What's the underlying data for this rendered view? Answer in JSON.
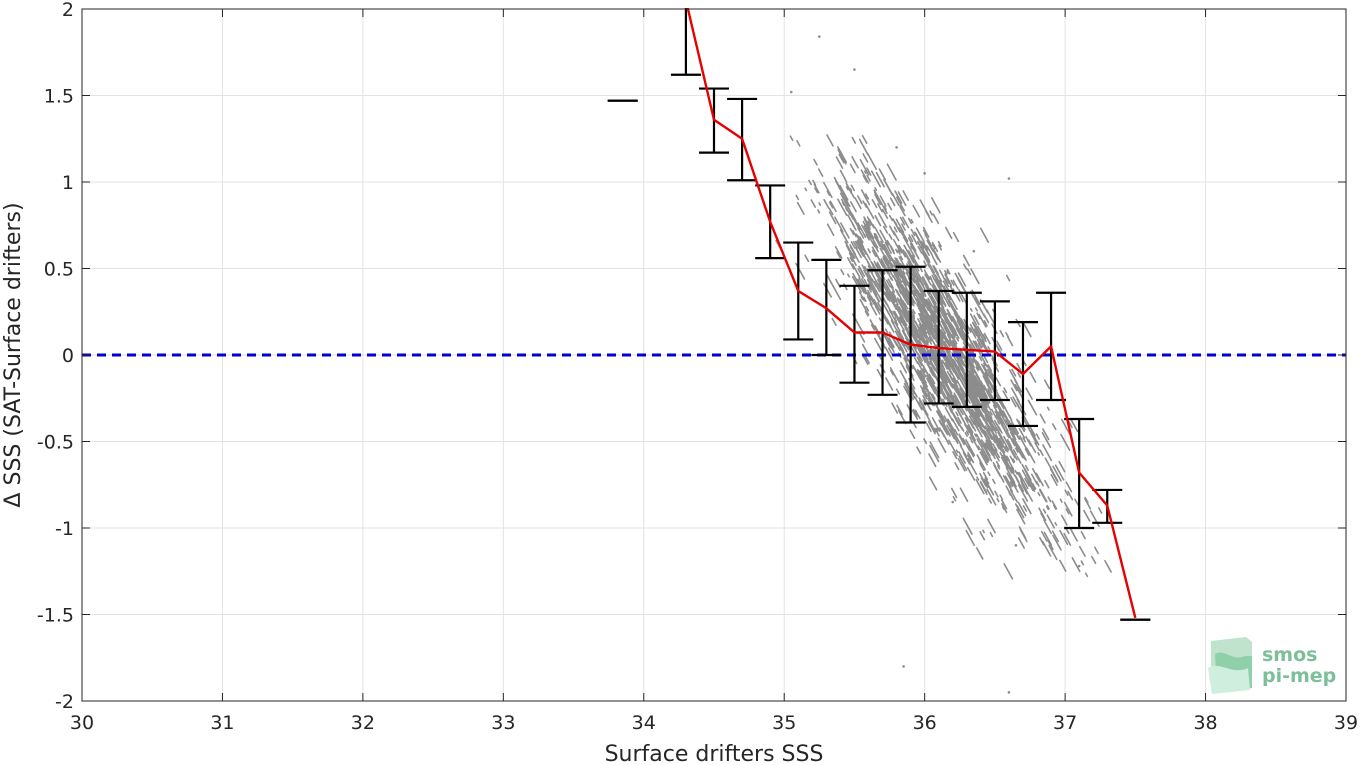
{
  "chart_data": {
    "type": "scatter",
    "xlabel": "Surface drifters SSS",
    "ylabel": "Δ SSS (SAT-Surface drifters)",
    "xlim": [
      30,
      39
    ],
    "ylim": [
      -2,
      2
    ],
    "x_ticks": [
      30,
      31,
      32,
      33,
      34,
      35,
      36,
      37,
      38,
      39
    ],
    "y_ticks": [
      -2,
      -1.5,
      -1,
      -0.5,
      0,
      0.5,
      1,
      1.5,
      2
    ],
    "grid": true,
    "reference_line": {
      "y": 0,
      "color": "#0000cc",
      "style": "dashed"
    },
    "series": [
      {
        "kind": "binned-mean-line",
        "color": "#e60000",
        "x": [
          34.3,
          34.5,
          34.7,
          34.9,
          35.1,
          35.3,
          35.5,
          35.7,
          35.9,
          36.1,
          36.3,
          36.5,
          36.7,
          36.9,
          37.1,
          37.3,
          37.5
        ],
        "y": [
          2.05,
          1.36,
          1.25,
          0.77,
          0.37,
          0.27,
          0.13,
          0.13,
          0.06,
          0.04,
          0.03,
          0.02,
          -0.11,
          0.05,
          -0.68,
          -0.87,
          -1.52
        ]
      },
      {
        "kind": "error-bars",
        "color": "#000000",
        "x": [
          33.85,
          34.3,
          34.5,
          34.7,
          34.9,
          35.1,
          35.3,
          35.5,
          35.7,
          35.9,
          36.1,
          36.3,
          36.5,
          36.7,
          36.9,
          37.1,
          37.3,
          37.5
        ],
        "lower": [
          1.47,
          1.62,
          1.17,
          1.01,
          0.56,
          0.09,
          0.0,
          -0.16,
          -0.23,
          -0.39,
          -0.28,
          -0.3,
          -0.26,
          -0.41,
          -0.26,
          -1.0,
          -0.97,
          -1.53
        ],
        "upper": [
          1.47,
          2.05,
          1.54,
          1.48,
          0.98,
          0.65,
          0.55,
          0.4,
          0.49,
          0.51,
          0.37,
          0.36,
          0.31,
          0.19,
          0.36,
          -0.37,
          -0.78,
          -1.53
        ]
      },
      {
        "kind": "scatter-cloud",
        "color": "#8c8c8c",
        "description_points": [
          {
            "x": 35.05,
            "y": 1.52
          },
          {
            "x": 35.25,
            "y": 1.84
          },
          {
            "x": 35.5,
            "y": 1.65
          },
          {
            "x": 35.8,
            "y": 1.2
          },
          {
            "x": 36.0,
            "y": 1.05
          },
          {
            "x": 36.35,
            "y": 0.6
          },
          {
            "x": 36.6,
            "y": 1.02
          },
          {
            "x": 36.2,
            "y": -0.85
          },
          {
            "x": 36.65,
            "y": -1.1
          },
          {
            "x": 35.85,
            "y": -1.8
          },
          {
            "x": 36.6,
            "y": -1.95
          },
          {
            "x": 37.1,
            "y": -1.22
          }
        ]
      }
    ]
  },
  "logo": {
    "line1": "smos",
    "line2": "pi-mep"
  }
}
